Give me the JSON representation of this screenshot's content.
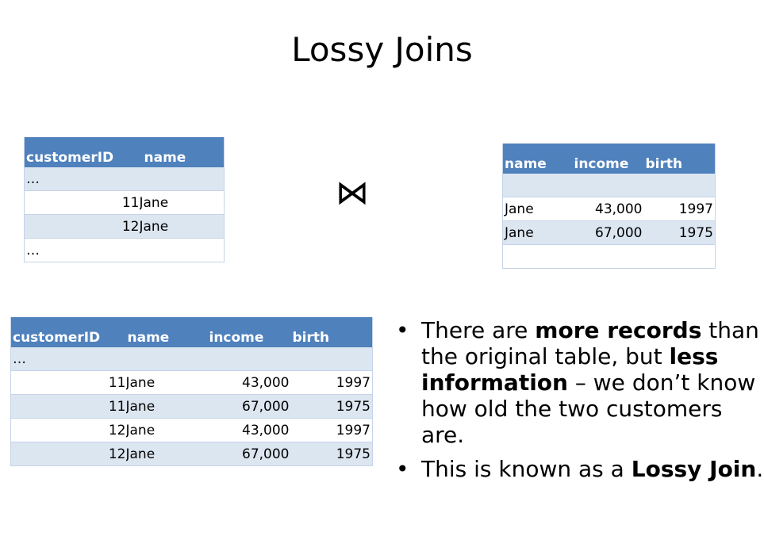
{
  "title": "Lossy Joins",
  "join_symbol": "⋈",
  "table_left": {
    "headers": [
      "customerID",
      "name"
    ],
    "rows": [
      [
        "…",
        ""
      ],
      [
        "11",
        "Jane"
      ],
      [
        "12",
        "Jane"
      ],
      [
        "…",
        ""
      ]
    ]
  },
  "table_right": {
    "headers": [
      "name",
      "income",
      "birth"
    ],
    "rows": [
      [
        "",
        "",
        ""
      ],
      [
        "Jane",
        "43,000",
        "1997"
      ],
      [
        "Jane",
        "67,000",
        "1975"
      ],
      [
        "",
        "",
        ""
      ]
    ]
  },
  "table_result": {
    "headers": [
      "customerID",
      "name",
      "income",
      "birth"
    ],
    "rows": [
      [
        "…",
        "",
        "",
        ""
      ],
      [
        "11",
        "Jane",
        "43,000",
        "1997"
      ],
      [
        "11",
        "Jane",
        "67,000",
        "1975"
      ],
      [
        "12",
        "Jane",
        "43,000",
        "1997"
      ],
      [
        "12",
        "Jane",
        "67,000",
        "1975"
      ]
    ]
  },
  "bullets": [
    {
      "dot": "•",
      "parts": [
        {
          "text": "There are ",
          "bold": false
        },
        {
          "text": "more records",
          "bold": true
        },
        {
          "text": " than the original table, but ",
          "bold": false
        },
        {
          "text": "less information",
          "bold": true
        },
        {
          "text": " – we don’t know how old the two customers are.",
          "bold": false
        }
      ]
    },
    {
      "dot": "•",
      "parts": [
        {
          "text": "This is known as a ",
          "bold": false
        },
        {
          "text": "Lossy Join",
          "bold": true
        },
        {
          "text": ".",
          "bold": false
        }
      ]
    }
  ]
}
